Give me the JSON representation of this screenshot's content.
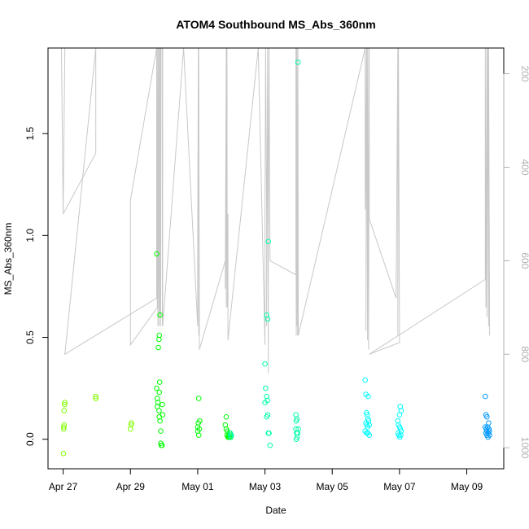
{
  "chart_data": {
    "type": "scatter",
    "title": "ATOM4 Southbound MS_Abs_360nm",
    "xlabel": "Date",
    "ylabel": "MS_Abs_360nm",
    "x_tick_labels": [
      "Apr 27",
      "Apr 29",
      "May 01",
      "May 03",
      "May 05",
      "May 07",
      "May 09"
    ],
    "x_tick_values": [
      0,
      2,
      4,
      6,
      8,
      10,
      12
    ],
    "y_ticks": [
      "0.0",
      "0.5",
      "1.0",
      "1.5"
    ],
    "y_tick_values": [
      0.0,
      0.5,
      1.0,
      1.5
    ],
    "y2_ticks": [
      "200",
      "400",
      "600",
      "800",
      "1000"
    ],
    "y2_tick_values": [
      200,
      400,
      600,
      800,
      1000
    ],
    "xlim": [
      -0.45,
      13.1
    ],
    "ylim": [
      -0.145,
      1.92
    ],
    "y2lim": [
      1045,
      145
    ],
    "y2_reversed": true,
    "grid": false,
    "colors": {
      "series": [
        "#80ff00",
        "#00ff00",
        "#00ffaa",
        "#00ffff",
        "#0099ff"
      ],
      "depth_line": "#c8c8c8"
    },
    "points": [
      {
        "x": 0.02,
        "y": 0.06
      },
      {
        "x": 0.02,
        "y": 0.05
      },
      {
        "x": 0.03,
        "y": 0.07
      },
      {
        "x": 0.03,
        "y": 0.14
      },
      {
        "x": 0.04,
        "y": 0.17
      },
      {
        "x": 0.05,
        "y": 0.18
      },
      {
        "x": 0.01,
        "y": -0.07
      },
      {
        "x": 0.97,
        "y": 0.2
      },
      {
        "x": 0.97,
        "y": 0.21
      },
      {
        "x": 2.0,
        "y": 0.05
      },
      {
        "x": 2.02,
        "y": 0.07
      },
      {
        "x": 2.03,
        "y": 0.08
      },
      {
        "x": 2.78,
        "y": 0.91
      },
      {
        "x": 2.78,
        "y": 0.25
      },
      {
        "x": 2.8,
        "y": 0.2
      },
      {
        "x": 2.8,
        "y": 0.16
      },
      {
        "x": 2.82,
        "y": 0.18
      },
      {
        "x": 2.83,
        "y": 0.45
      },
      {
        "x": 2.85,
        "y": 0.49
      },
      {
        "x": 2.86,
        "y": 0.51
      },
      {
        "x": 2.87,
        "y": 0.28
      },
      {
        "x": 2.88,
        "y": 0.61
      },
      {
        "x": 2.85,
        "y": 0.14
      },
      {
        "x": 2.86,
        "y": 0.11
      },
      {
        "x": 2.88,
        "y": 0.09
      },
      {
        "x": 2.9,
        "y": 0.04
      },
      {
        "x": 2.9,
        "y": -0.02
      },
      {
        "x": 2.92,
        "y": -0.03
      },
      {
        "x": 2.94,
        "y": -0.03
      },
      {
        "x": 2.95,
        "y": 0.17
      },
      {
        "x": 2.96,
        "y": 0.12
      },
      {
        "x": 2.86,
        "y": 0.23
      },
      {
        "x": 4.03,
        "y": 0.2
      },
      {
        "x": 4.0,
        "y": 0.06
      },
      {
        "x": 4.0,
        "y": 0.04
      },
      {
        "x": 4.02,
        "y": 0.08
      },
      {
        "x": 4.03,
        "y": 0.02
      },
      {
        "x": 4.05,
        "y": 0.05
      },
      {
        "x": 4.06,
        "y": 0.09
      },
      {
        "x": 4.82,
        "y": 0.07
      },
      {
        "x": 4.85,
        "y": 0.11
      },
      {
        "x": 4.85,
        "y": 0.05
      },
      {
        "x": 4.87,
        "y": 0.02
      },
      {
        "x": 4.88,
        "y": 0.04
      },
      {
        "x": 4.9,
        "y": 0.01
      },
      {
        "x": 4.92,
        "y": 0.02
      },
      {
        "x": 4.93,
        "y": 0.01
      },
      {
        "x": 4.95,
        "y": 0.03
      },
      {
        "x": 4.96,
        "y": 0.01
      },
      {
        "x": 4.98,
        "y": 0.02
      },
      {
        "x": 4.97,
        "y": 0.03
      },
      {
        "x": 4.99,
        "y": 0.01
      },
      {
        "x": 5.0,
        "y": 0.02
      },
      {
        "x": 6.1,
        "y": 0.97
      },
      {
        "x": 6.05,
        "y": 0.61
      },
      {
        "x": 6.08,
        "y": 0.59
      },
      {
        "x": 6.0,
        "y": 0.37
      },
      {
        "x": 6.02,
        "y": 0.25
      },
      {
        "x": 6.05,
        "y": 0.21
      },
      {
        "x": 6.07,
        "y": 0.19
      },
      {
        "x": 6.0,
        "y": 0.18
      },
      {
        "x": 6.05,
        "y": 0.11
      },
      {
        "x": 6.08,
        "y": 0.12
      },
      {
        "x": 6.1,
        "y": 0.03
      },
      {
        "x": 6.12,
        "y": 0.03
      },
      {
        "x": 6.15,
        "y": -0.03
      },
      {
        "x": 6.98,
        "y": 1.85
      },
      {
        "x": 6.92,
        "y": 0.12
      },
      {
        "x": 6.93,
        "y": 0.09
      },
      {
        "x": 6.95,
        "y": 0.1
      },
      {
        "x": 6.92,
        "y": 0.05
      },
      {
        "x": 6.94,
        "y": 0.03
      },
      {
        "x": 6.96,
        "y": 0.01
      },
      {
        "x": 6.93,
        "y": 0.0
      },
      {
        "x": 6.97,
        "y": 0.03
      },
      {
        "x": 6.99,
        "y": 0.05
      },
      {
        "x": 8.98,
        "y": 0.29
      },
      {
        "x": 9.0,
        "y": 0.22
      },
      {
        "x": 9.07,
        "y": 0.21
      },
      {
        "x": 9.02,
        "y": 0.13
      },
      {
        "x": 9.04,
        "y": 0.12
      },
      {
        "x": 9.06,
        "y": 0.1
      },
      {
        "x": 9.0,
        "y": 0.08
      },
      {
        "x": 9.03,
        "y": 0.07
      },
      {
        "x": 9.05,
        "y": 0.06
      },
      {
        "x": 9.08,
        "y": 0.09
      },
      {
        "x": 9.1,
        "y": 0.07
      },
      {
        "x": 8.98,
        "y": 0.04
      },
      {
        "x": 9.02,
        "y": 0.03
      },
      {
        "x": 9.06,
        "y": 0.03
      },
      {
        "x": 9.1,
        "y": 0.02
      },
      {
        "x": 10.02,
        "y": 0.16
      },
      {
        "x": 10.0,
        "y": 0.12
      },
      {
        "x": 10.05,
        "y": 0.14
      },
      {
        "x": 9.95,
        "y": 0.09
      },
      {
        "x": 9.97,
        "y": 0.07
      },
      {
        "x": 10.0,
        "y": 0.06
      },
      {
        "x": 10.03,
        "y": 0.05
      },
      {
        "x": 9.96,
        "y": 0.03
      },
      {
        "x": 9.98,
        "y": 0.02
      },
      {
        "x": 10.01,
        "y": 0.01
      },
      {
        "x": 10.04,
        "y": 0.02
      },
      {
        "x": 10.05,
        "y": 0.04
      },
      {
        "x": 12.55,
        "y": 0.21
      },
      {
        "x": 12.57,
        "y": 0.12
      },
      {
        "x": 12.6,
        "y": 0.11
      },
      {
        "x": 12.65,
        "y": 0.08
      },
      {
        "x": 12.55,
        "y": 0.06
      },
      {
        "x": 12.58,
        "y": 0.05
      },
      {
        "x": 12.6,
        "y": 0.04
      },
      {
        "x": 12.62,
        "y": 0.06
      },
      {
        "x": 12.64,
        "y": 0.03
      },
      {
        "x": 12.66,
        "y": 0.05
      },
      {
        "x": 12.68,
        "y": 0.02
      },
      {
        "x": 12.57,
        "y": 0.03
      },
      {
        "x": 12.6,
        "y": 0.02
      },
      {
        "x": 12.63,
        "y": 0.01
      },
      {
        "x": 12.67,
        "y": 0.04
      }
    ],
    "depth_track": [
      [
        -0.05,
        145
      ],
      [
        0.0,
        500
      ],
      [
        0.05,
        145
      ],
      [
        0.0,
        500
      ],
      [
        0.97,
        370
      ],
      [
        0.97,
        145
      ],
      [
        0.97,
        145
      ],
      [
        0.05,
        800
      ],
      [
        2.78,
        680
      ],
      [
        2.78,
        145
      ],
      [
        2.0,
        470
      ],
      [
        2.0,
        780
      ],
      [
        2.8,
        700
      ],
      [
        2.8,
        145
      ],
      [
        2.82,
        740
      ],
      [
        2.83,
        145
      ],
      [
        2.85,
        740
      ],
      [
        2.86,
        145
      ],
      [
        2.88,
        720
      ],
      [
        2.88,
        145
      ],
      [
        2.9,
        740
      ],
      [
        2.9,
        145
      ],
      [
        2.92,
        145
      ],
      [
        2.94,
        145
      ],
      [
        2.95,
        740
      ],
      [
        2.96,
        145
      ],
      [
        2.96,
        740
      ],
      [
        3.58,
        145
      ],
      [
        4.0,
        740
      ],
      [
        4.0,
        580
      ],
      [
        4.02,
        145
      ],
      [
        4.03,
        760
      ],
      [
        4.03,
        145
      ],
      [
        4.05,
        790
      ],
      [
        4.82,
        600
      ],
      [
        4.82,
        660
      ],
      [
        4.85,
        145
      ],
      [
        4.85,
        700
      ],
      [
        4.87,
        145
      ],
      [
        4.88,
        700
      ],
      [
        4.9,
        500
      ],
      [
        4.9,
        770
      ],
      [
        5.8,
        145
      ],
      [
        6.0,
        780
      ],
      [
        6.0,
        500
      ],
      [
        6.02,
        145
      ],
      [
        6.05,
        500
      ],
      [
        6.05,
        740
      ],
      [
        6.08,
        145
      ],
      [
        6.1,
        840
      ],
      [
        6.1,
        560
      ],
      [
        6.12,
        145
      ],
      [
        6.15,
        600
      ],
      [
        6.92,
        630
      ],
      [
        6.92,
        145
      ],
      [
        6.93,
        760
      ],
      [
        6.93,
        145
      ],
      [
        6.95,
        740
      ],
      [
        6.95,
        145
      ],
      [
        6.97,
        760
      ],
      [
        6.98,
        145
      ],
      [
        6.99,
        760
      ],
      [
        8.98,
        145
      ],
      [
        8.98,
        490
      ],
      [
        9.02,
        145
      ],
      [
        9.0,
        750
      ],
      [
        9.03,
        145
      ],
      [
        9.05,
        770
      ],
      [
        9.06,
        145
      ],
      [
        9.08,
        790
      ],
      [
        9.1,
        145
      ],
      [
        9.1,
        510
      ],
      [
        9.9,
        680
      ],
      [
        9.95,
        145
      ],
      [
        9.95,
        760
      ],
      [
        9.97,
        145
      ],
      [
        10.0,
        775
      ],
      [
        9.1,
        800
      ],
      [
        12.55,
        640
      ],
      [
        12.55,
        145
      ],
      [
        12.57,
        700
      ],
      [
        12.6,
        145
      ],
      [
        12.6,
        720
      ],
      [
        12.62,
        145
      ],
      [
        12.65,
        740
      ],
      [
        12.65,
        145
      ],
      [
        12.68,
        760
      ]
    ]
  }
}
